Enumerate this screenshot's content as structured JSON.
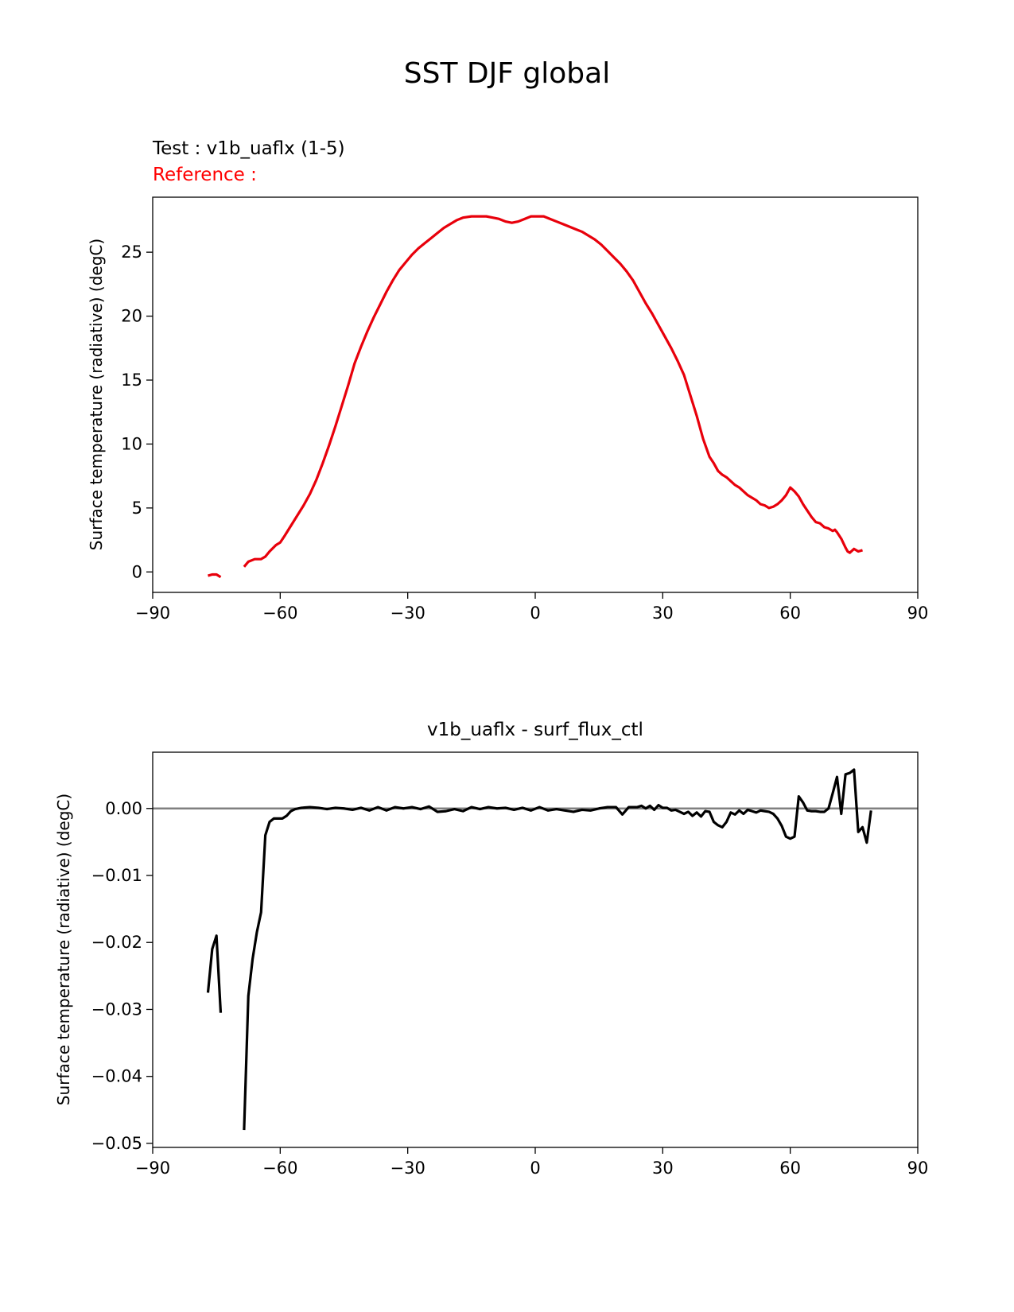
{
  "suptitle": "SST DJF global",
  "test_label": "Test : v1b_uaflx (1-5)",
  "reference_label": "Reference :",
  "colors": {
    "test_line": "#e8000b",
    "diff_line": "#000000",
    "zero_line": "#808080",
    "reference_text": "#ff0000"
  },
  "chart_data": [
    {
      "type": "line",
      "name": "test-panel",
      "title": "",
      "xlabel": "",
      "ylabel": "Surface temperature (radiative) (degC)",
      "xlim": [
        -90,
        90
      ],
      "ylim": [
        -1.6,
        29.3
      ],
      "xticks": [
        -90,
        -60,
        -30,
        0,
        30,
        60,
        90
      ],
      "xtick_labels": [
        "−90",
        "−60",
        "−30",
        "0",
        "30",
        "60",
        "90"
      ],
      "yticks": [
        0,
        5,
        10,
        15,
        20,
        25
      ],
      "ytick_labels": [
        "0",
        "5",
        "10",
        "15",
        "20",
        "25"
      ],
      "series": [
        {
          "name": "v1b_uaflx",
          "segments": [
            [
              [
                -77,
                -0.3
              ],
              [
                -76,
                -0.2
              ],
              [
                -75,
                -0.2
              ],
              [
                -74,
                -0.4
              ]
            ],
            [
              [
                -68.5,
                0.4
              ],
              [
                -67.5,
                0.8
              ],
              [
                -66,
                1.0
              ],
              [
                -64.5,
                1.0
              ],
              [
                -63.5,
                1.2
              ],
              [
                -62.5,
                1.6
              ],
              [
                -61,
                2.1
              ],
              [
                -60,
                2.3
              ],
              [
                -59,
                2.8
              ],
              [
                -57.5,
                3.6
              ],
              [
                -56,
                4.4
              ],
              [
                -54.5,
                5.2
              ],
              [
                -53,
                6.1
              ],
              [
                -51.5,
                7.2
              ],
              [
                -50,
                8.5
              ],
              [
                -48.5,
                9.9
              ],
              [
                -47,
                11.4
              ],
              [
                -45.5,
                13.0
              ],
              [
                -44,
                14.6
              ],
              [
                -42.5,
                16.3
              ],
              [
                -41,
                17.6
              ],
              [
                -39.5,
                18.8
              ],
              [
                -38,
                19.9
              ],
              [
                -36.5,
                20.9
              ],
              [
                -35,
                21.9
              ],
              [
                -33.5,
                22.8
              ],
              [
                -32,
                23.6
              ],
              [
                -30.5,
                24.2
              ],
              [
                -29,
                24.8
              ],
              [
                -27.5,
                25.3
              ],
              [
                -26,
                25.7
              ],
              [
                -24.5,
                26.1
              ],
              [
                -23,
                26.5
              ],
              [
                -21.5,
                26.9
              ],
              [
                -20,
                27.2
              ],
              [
                -18.5,
                27.5
              ],
              [
                -17,
                27.7
              ],
              [
                -15,
                27.8
              ],
              [
                -13,
                27.8
              ],
              [
                -11.5,
                27.8
              ],
              [
                -10,
                27.7
              ],
              [
                -8.5,
                27.6
              ],
              [
                -7,
                27.4
              ],
              [
                -5.5,
                27.3
              ],
              [
                -4,
                27.4
              ],
              [
                -2.5,
                27.6
              ],
              [
                -1,
                27.8
              ],
              [
                0.5,
                27.8
              ],
              [
                2,
                27.8
              ],
              [
                3.5,
                27.6
              ],
              [
                5,
                27.4
              ],
              [
                6.5,
                27.2
              ],
              [
                8,
                27.0
              ],
              [
                9.5,
                26.8
              ],
              [
                11,
                26.6
              ],
              [
                12.5,
                26.3
              ],
              [
                14,
                26.0
              ],
              [
                15.5,
                25.6
              ],
              [
                17,
                25.1
              ],
              [
                18.5,
                24.6
              ],
              [
                20,
                24.1
              ],
              [
                21.5,
                23.5
              ],
              [
                23,
                22.8
              ],
              [
                24.5,
                21.9
              ],
              [
                26,
                21.0
              ],
              [
                27.5,
                20.2
              ],
              [
                29,
                19.3
              ],
              [
                30.5,
                18.4
              ],
              [
                32,
                17.5
              ],
              [
                33.5,
                16.5
              ],
              [
                35,
                15.4
              ],
              [
                36.5,
                13.8
              ],
              [
                38,
                12.2
              ],
              [
                39.5,
                10.4
              ],
              [
                41,
                9.0
              ],
              [
                42,
                8.5
              ],
              [
                43,
                7.9
              ],
              [
                44,
                7.6
              ],
              [
                45,
                7.4
              ],
              [
                46,
                7.1
              ],
              [
                47,
                6.8
              ],
              [
                48,
                6.6
              ],
              [
                49,
                6.3
              ],
              [
                50,
                6.0
              ],
              [
                51,
                5.8
              ],
              [
                52,
                5.6
              ],
              [
                53,
                5.3
              ],
              [
                54,
                5.2
              ],
              [
                55,
                5.0
              ],
              [
                56,
                5.1
              ],
              [
                57,
                5.3
              ],
              [
                58,
                5.6
              ],
              [
                59,
                6.0
              ],
              [
                60,
                6.6
              ],
              [
                61,
                6.3
              ],
              [
                62,
                5.9
              ],
              [
                63,
                5.3
              ],
              [
                64,
                4.8
              ],
              [
                65,
                4.3
              ],
              [
                66,
                3.9
              ],
              [
                67,
                3.8
              ],
              [
                68,
                3.5
              ],
              [
                69,
                3.4
              ],
              [
                70,
                3.2
              ],
              [
                70.5,
                3.3
              ],
              [
                71,
                3.1
              ],
              [
                72,
                2.6
              ],
              [
                73,
                1.9
              ],
              [
                73.5,
                1.6
              ],
              [
                74,
                1.5
              ],
              [
                75,
                1.8
              ],
              [
                76,
                1.6
              ],
              [
                77,
                1.7
              ]
            ]
          ]
        }
      ]
    },
    {
      "type": "line",
      "name": "diff-panel",
      "title": "v1b_uaflx - surf_flux_ctl",
      "xlabel": "",
      "ylabel": "Surface temperature (radiative) (degC)",
      "xlim": [
        -90,
        90
      ],
      "ylim": [
        -0.0506,
        0.0084
      ],
      "xticks": [
        -90,
        -60,
        -30,
        0,
        30,
        60,
        90
      ],
      "xtick_labels": [
        "−90",
        "−60",
        "−30",
        "0",
        "30",
        "60",
        "90"
      ],
      "yticks": [
        0.0,
        -0.01,
        -0.02,
        -0.03,
        -0.04,
        -0.05
      ],
      "ytick_labels": [
        "0.00",
        "−0.01",
        "−0.02",
        "−0.03",
        "−0.04",
        "−0.05"
      ],
      "reference_line": 0.0,
      "series": [
        {
          "name": "v1b_uaflx - surf_flux_ctl",
          "segments": [
            [
              [
                -77,
                -0.0275
              ],
              [
                -76,
                -0.021
              ],
              [
                -75,
                -0.019
              ],
              [
                -74,
                -0.0305
              ]
            ],
            [
              [
                -68.5,
                -0.048
              ],
              [
                -67.5,
                -0.028
              ],
              [
                -66.5,
                -0.0225
              ],
              [
                -65.5,
                -0.0185
              ],
              [
                -64.5,
                -0.0155
              ],
              [
                -63.5,
                -0.004
              ],
              [
                -62.5,
                -0.002
              ],
              [
                -61.5,
                -0.0015
              ],
              [
                -60.5,
                -0.0015
              ],
              [
                -59.5,
                -0.0015
              ],
              [
                -58.5,
                -0.0011
              ],
              [
                -57.5,
                -0.0004
              ],
              [
                -56.5,
                -0.0001
              ],
              [
                -55,
                0.0001
              ],
              [
                -53,
                0.0002
              ],
              [
                -51,
                0.0001
              ],
              [
                -49,
                -0.0001
              ],
              [
                -47,
                0.0001
              ],
              [
                -45,
                0.0
              ],
              [
                -43,
                -0.0002
              ],
              [
                -41,
                0.0001
              ],
              [
                -39,
                -0.0003
              ],
              [
                -37,
                0.0002
              ],
              [
                -35,
                -0.0003
              ],
              [
                -33,
                0.0002
              ],
              [
                -31,
                0.0
              ],
              [
                -29,
                0.0002
              ],
              [
                -27,
                -0.0001
              ],
              [
                -25,
                0.0003
              ],
              [
                -23,
                -0.0005
              ],
              [
                -21,
                -0.0004
              ],
              [
                -19,
                -0.0001
              ],
              [
                -17,
                -0.0004
              ],
              [
                -15,
                0.0002
              ],
              [
                -13,
                -0.0001
              ],
              [
                -11,
                0.0002
              ],
              [
                -9,
                0.0
              ],
              [
                -7,
                0.0001
              ],
              [
                -5,
                -0.0002
              ],
              [
                -3,
                0.0001
              ],
              [
                -1,
                -0.0003
              ],
              [
                1,
                0.0002
              ],
              [
                3,
                -0.0003
              ],
              [
                5,
                -0.0001
              ],
              [
                7,
                -0.0003
              ],
              [
                9,
                -0.0005
              ],
              [
                11,
                -0.0002
              ],
              [
                13,
                -0.0003
              ],
              [
                15,
                0.0
              ],
              [
                17,
                0.0002
              ],
              [
                19,
                0.0002
              ],
              [
                20.5,
                -0.0009
              ],
              [
                22,
                0.0002
              ],
              [
                24,
                0.0002
              ],
              [
                25,
                0.0004
              ],
              [
                26,
                0.0
              ],
              [
                27,
                0.0004
              ],
              [
                28,
                -0.0002
              ],
              [
                29,
                0.0005
              ],
              [
                30,
                0.0001
              ],
              [
                31,
                0.0001
              ],
              [
                32,
                -0.0003
              ],
              [
                33,
                -0.0002
              ],
              [
                34,
                -0.0005
              ],
              [
                35,
                -0.0008
              ],
              [
                36,
                -0.0005
              ],
              [
                37,
                -0.0011
              ],
              [
                38,
                -0.0006
              ],
              [
                39,
                -0.0012
              ],
              [
                40,
                -0.0004
              ],
              [
                41,
                -0.0005
              ],
              [
                42,
                -0.002
              ],
              [
                43,
                -0.0025
              ],
              [
                44,
                -0.0028
              ],
              [
                45,
                -0.002
              ],
              [
                46,
                -0.0006
              ],
              [
                47,
                -0.0009
              ],
              [
                48,
                -0.0003
              ],
              [
                49,
                -0.0008
              ],
              [
                50,
                -0.0002
              ],
              [
                51,
                -0.0004
              ],
              [
                52,
                -0.0006
              ],
              [
                53,
                -0.0003
              ],
              [
                54,
                -0.0004
              ],
              [
                55,
                -0.0005
              ],
              [
                56,
                -0.0008
              ],
              [
                57,
                -0.0015
              ],
              [
                58,
                -0.0026
              ],
              [
                59,
                -0.0042
              ],
              [
                60,
                -0.0045
              ],
              [
                61,
                -0.0042
              ],
              [
                62,
                0.0018
              ],
              [
                63,
                0.0009
              ],
              [
                64,
                -0.0003
              ],
              [
                65,
                -0.0004
              ],
              [
                66,
                -0.0004
              ],
              [
                67,
                -0.0005
              ],
              [
                68,
                -0.0005
              ],
              [
                69,
                0.0
              ],
              [
                70,
                0.0023
              ],
              [
                71,
                0.0047
              ],
              [
                72,
                -0.0008
              ],
              [
                73,
                0.0051
              ],
              [
                74,
                0.0053
              ],
              [
                75,
                0.0058
              ],
              [
                76,
                -0.0035
              ],
              [
                77,
                -0.0028
              ],
              [
                78,
                -0.0051
              ],
              [
                79,
                -0.0003
              ]
            ]
          ]
        }
      ]
    }
  ]
}
